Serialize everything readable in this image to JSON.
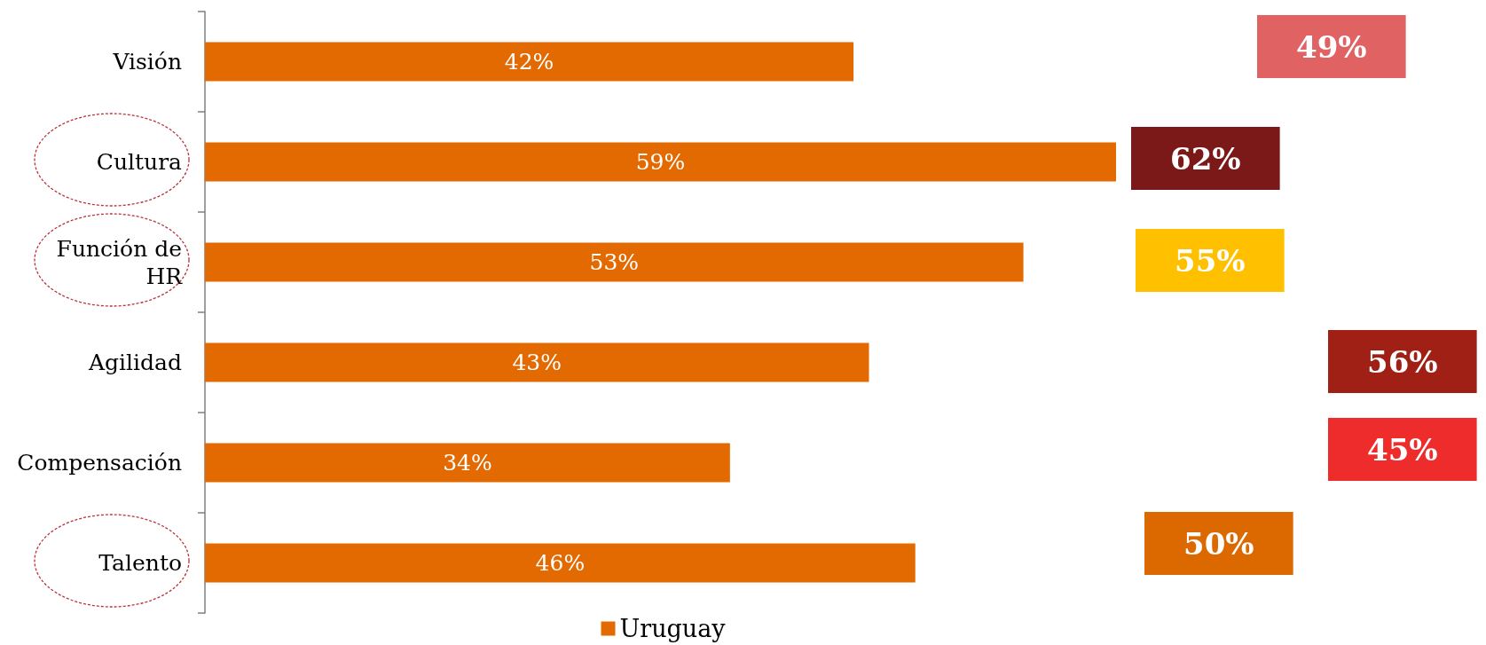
{
  "chart_data": {
    "type": "bar",
    "orientation": "horizontal",
    "categories": [
      "Visión",
      "Cultura",
      "Función de HR",
      "Agilidad",
      "Compensación",
      "Talento"
    ],
    "series": [
      {
        "name": "Uruguay",
        "color": "#e36a00",
        "values": [
          42,
          59,
          53,
          43,
          34,
          46
        ],
        "value_labels": [
          "42%",
          "59%",
          "53%",
          "43%",
          "34%",
          "46%"
        ]
      }
    ],
    "legend": "bottom",
    "tick_labels": "y",
    "annotations": [
      "49%",
      "62%",
      "55%",
      "56%",
      "45%",
      "50%"
    ]
  }
}
